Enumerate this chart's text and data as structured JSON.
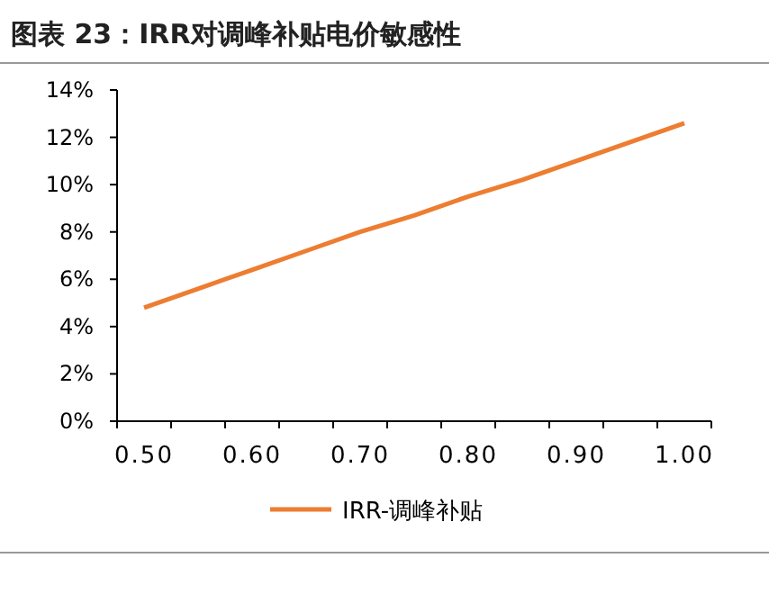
{
  "chart_data": {
    "type": "line",
    "title": "图表 23：IRR对调峰补贴电价敏感性",
    "categories": [
      "0.50",
      null,
      "0.60",
      null,
      "0.70",
      null,
      "0.80",
      null,
      "0.90",
      null,
      "1.00"
    ],
    "series": [
      {
        "name": "IRR-调峰补贴",
        "color": "#ed7d31",
        "values": [
          4.8,
          5.6,
          6.4,
          7.2,
          8.0,
          8.7,
          9.5,
          10.2,
          11.0,
          11.8,
          12.6
        ]
      }
    ],
    "ylim": [
      0,
      14
    ],
    "yticks": [
      {
        "value": 0,
        "label": "0%"
      },
      {
        "value": 2,
        "label": "2%"
      },
      {
        "value": 4,
        "label": "4%"
      },
      {
        "value": 6,
        "label": "6%"
      },
      {
        "value": 8,
        "label": "8%"
      },
      {
        "value": 10,
        "label": "10%"
      },
      {
        "value": 12,
        "label": "12%"
      },
      {
        "value": 14,
        "label": "14%"
      }
    ],
    "legend": "bottom",
    "grid": false,
    "marker": "none",
    "line_style": "solid"
  }
}
